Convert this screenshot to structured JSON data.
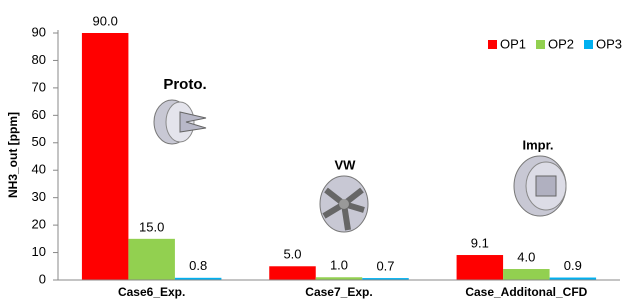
{
  "chart_data": {
    "type": "bar",
    "y_label": "NH3_out [ppm]",
    "categories": [
      "Case6_Exp.",
      "Case7_Exp.",
      "Case_Additonal_CFD"
    ],
    "series": [
      {
        "name": "OP1",
        "color": "#ff0000",
        "values": [
          90.0,
          5.0,
          9.1
        ],
        "value_labels": [
          "90.0",
          "5.0",
          "9.1"
        ]
      },
      {
        "name": "OP2",
        "color": "#92d050",
        "values": [
          15.0,
          1.0,
          4.0
        ],
        "value_labels": [
          "15.0",
          "1.0",
          "4.0"
        ]
      },
      {
        "name": "OP3",
        "color": "#00b0f0",
        "values": [
          0.8,
          0.7,
          0.9
        ],
        "value_labels": [
          "0.8",
          "0.7",
          "0.9"
        ]
      }
    ],
    "annotations": [
      "Proto.",
      "VW",
      "Impr."
    ],
    "ylim": [
      0,
      90
    ],
    "yticks": [
      0,
      10,
      20,
      30,
      40,
      50,
      60,
      70,
      80,
      90
    ],
    "grid": false,
    "legend": "top-right"
  }
}
